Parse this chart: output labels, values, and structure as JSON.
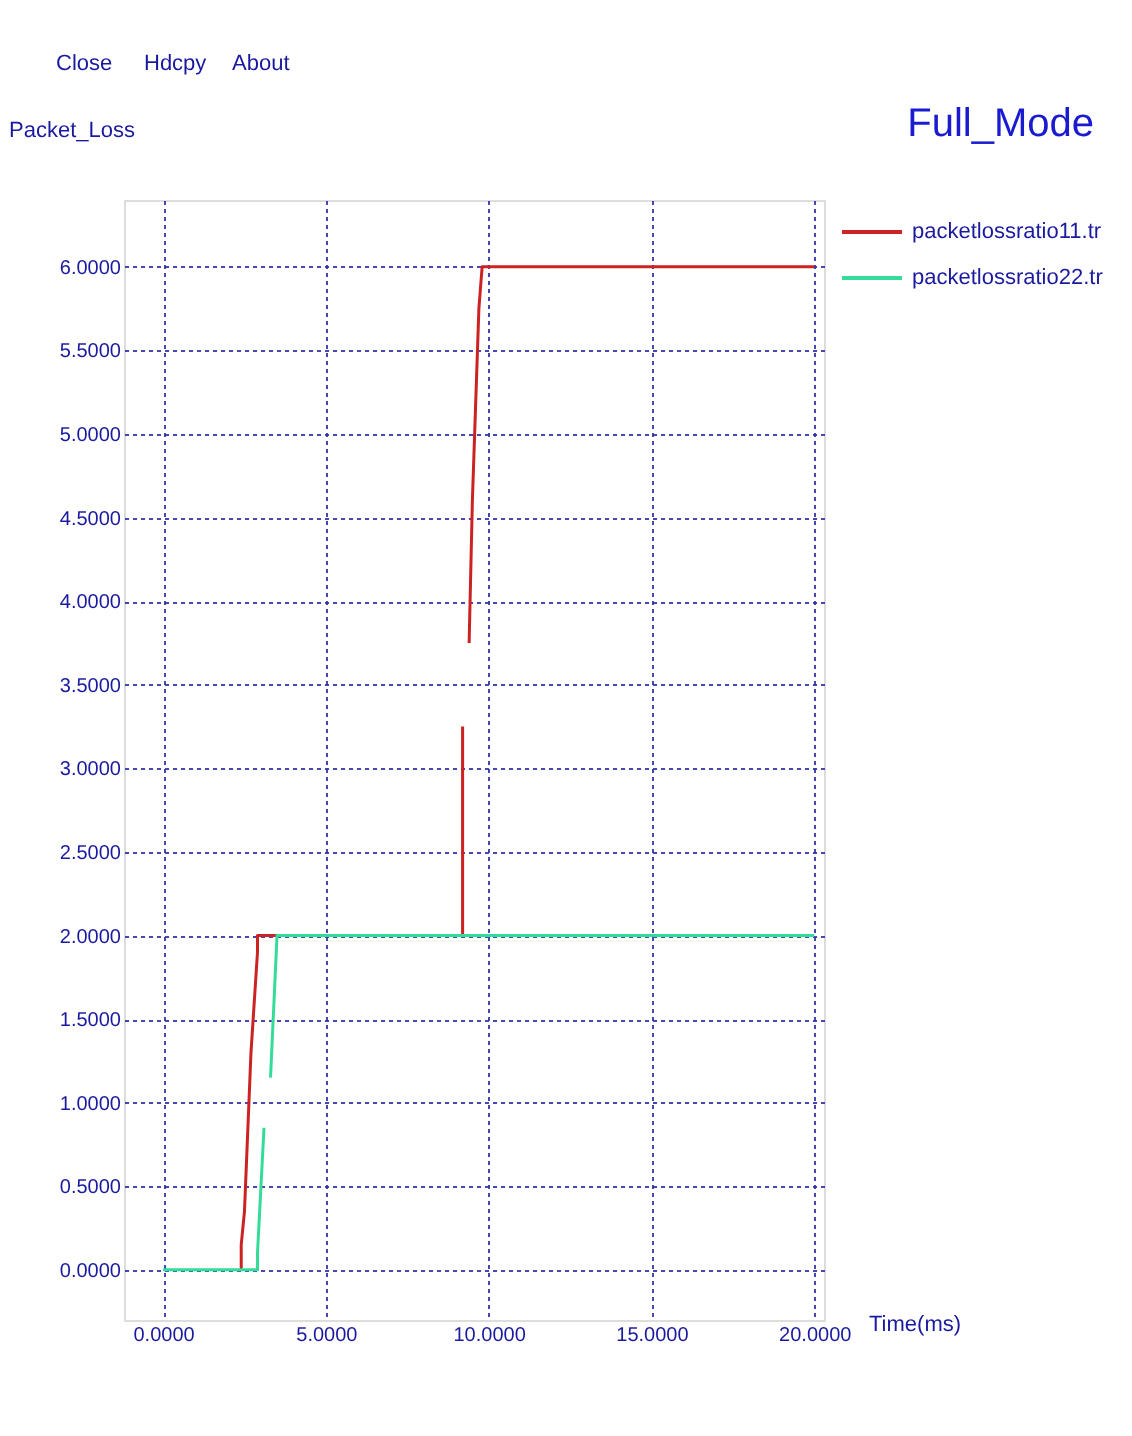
{
  "chart_data": {
    "type": "line",
    "title": "Full_Mode",
    "ylabel": "Packet_Loss",
    "xlabel": "Time(ms)",
    "annotations": [
      "Close",
      "Hdcpy",
      "About"
    ],
    "xlim": [
      -1.2,
      20.3
    ],
    "ylim": [
      -0.3,
      6.4
    ],
    "xticks": [
      {
        "value": 0,
        "label": "0.0000"
      },
      {
        "value": 5,
        "label": "5.0000"
      },
      {
        "value": 10,
        "label": "10.0000"
      },
      {
        "value": 15,
        "label": "15.0000"
      },
      {
        "value": 20,
        "label": "20.0000"
      }
    ],
    "yticks": [
      {
        "value": 0,
        "label": "0.0000"
      },
      {
        "value": 0.5,
        "label": "0.5000"
      },
      {
        "value": 1,
        "label": "1.0000"
      },
      {
        "value": 1.5,
        "label": "1.5000"
      },
      {
        "value": 2,
        "label": "2.0000"
      },
      {
        "value": 2.5,
        "label": "2.5000"
      },
      {
        "value": 3,
        "label": "3.0000"
      },
      {
        "value": 3.5,
        "label": "3.5000"
      },
      {
        "value": 4,
        "label": "4.0000"
      },
      {
        "value": 4.5,
        "label": "4.5000"
      },
      {
        "value": 5,
        "label": "5.0000"
      },
      {
        "value": 5.5,
        "label": "5.5000"
      },
      {
        "value": 6,
        "label": "6.0000"
      }
    ],
    "grid": true,
    "legend": "top right",
    "marker": "none",
    "line_style": "solid",
    "series": [
      {
        "name": "packetlossratio11.tr",
        "color": "#cc2222",
        "x": [
          2.4,
          2.4,
          2.5,
          2.7,
          2.9,
          2.9,
          3.3,
          9.2,
          9.2,
          9.3,
          9.4,
          9.5,
          9.7,
          9.8,
          20
        ],
        "values": [
          0,
          0.15,
          0.35,
          1.3,
          1.9,
          2.0,
          2.0,
          2.0,
          3.25,
          null,
          3.75,
          4.6,
          5.75,
          6.0,
          6.0
        ]
      },
      {
        "name": "packetlossratio22.tr",
        "color": "#33dd99",
        "x": [
          0,
          2.9,
          2.9,
          3.1,
          3.2,
          3.3,
          3.5,
          20
        ],
        "values": [
          0,
          0,
          0.1,
          0.85,
          null,
          1.15,
          2.0,
          2.0
        ]
      }
    ]
  }
}
